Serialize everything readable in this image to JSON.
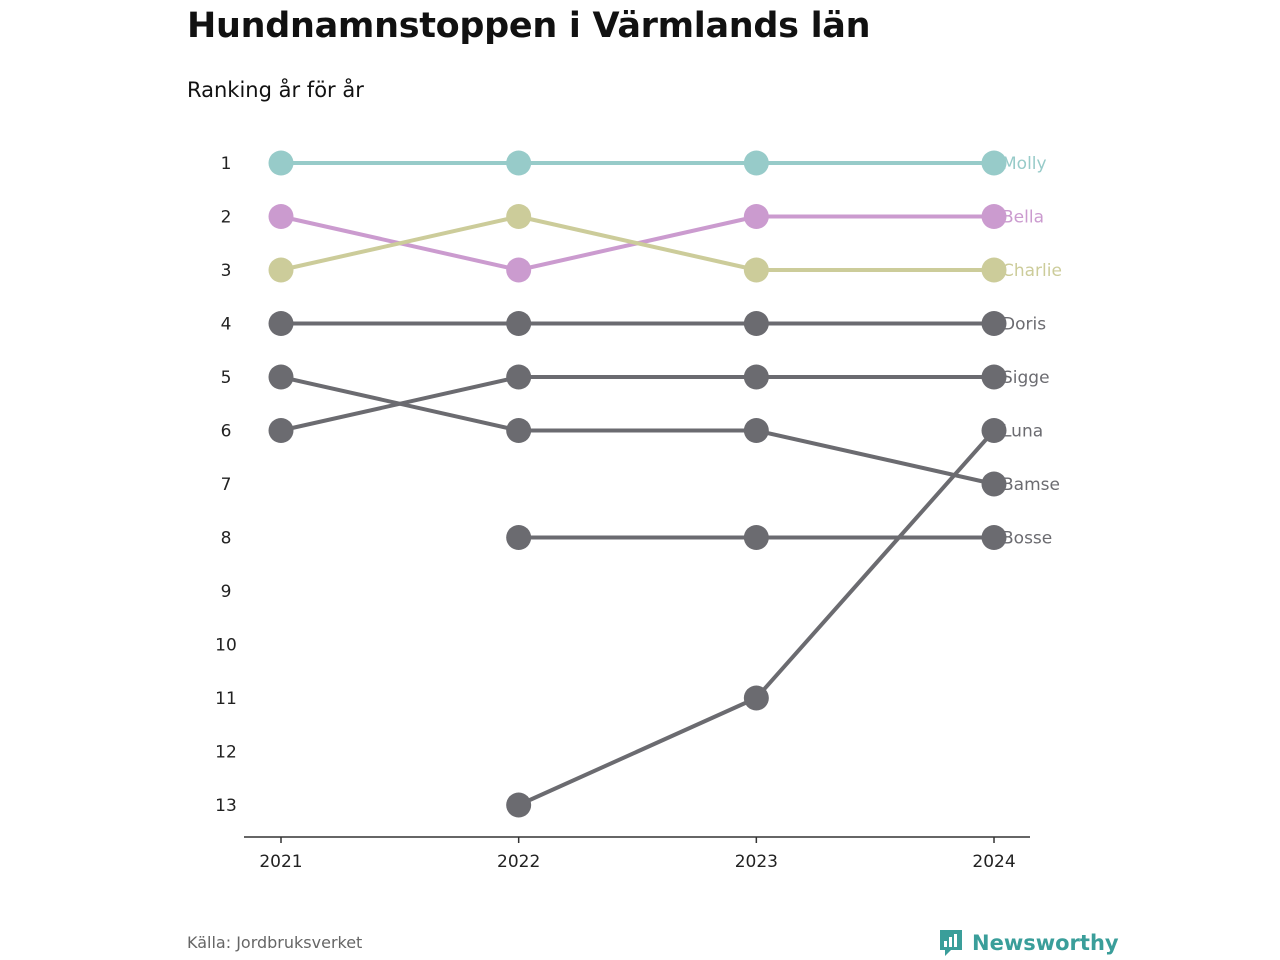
{
  "title": "Hundnamnstoppen i Värmlands län",
  "subtitle": "Ranking år för år",
  "source": "Källa: Jordbruksverket",
  "brand": "Newsworthy",
  "colors": {
    "highlight_1": "#97cbc9",
    "highlight_2": "#cb9bcf",
    "highlight_3": "#cccc9a",
    "default": "#6b6b70",
    "brand": "#3a9e9a"
  },
  "chart_data": {
    "type": "line",
    "x": [
      "2021",
      "2022",
      "2023",
      "2024"
    ],
    "ylim": [
      1,
      13
    ],
    "y_reversed": true,
    "y_ticks": [
      1,
      2,
      3,
      4,
      5,
      6,
      7,
      8,
      9,
      10,
      11,
      12,
      13
    ],
    "series": [
      {
        "name": "Molly",
        "color": "#97cbc9",
        "values": [
          1,
          1,
          1,
          1
        ]
      },
      {
        "name": "Bella",
        "color": "#cb9bcf",
        "values": [
          2,
          3,
          2,
          2
        ]
      },
      {
        "name": "Charlie",
        "color": "#cccc9a",
        "values": [
          3,
          2,
          3,
          3
        ]
      },
      {
        "name": "Doris",
        "color": "#6b6b70",
        "values": [
          4,
          4,
          4,
          4
        ]
      },
      {
        "name": "Sigge",
        "color": "#6b6b70",
        "values": [
          6,
          5,
          5,
          5
        ]
      },
      {
        "name": "Luna",
        "color": "#6b6b70",
        "values": [
          null,
          13,
          11,
          6
        ]
      },
      {
        "name": "Bamse",
        "color": "#6b6b70",
        "values": [
          5,
          6,
          6,
          7
        ]
      },
      {
        "name": "Bosse",
        "color": "#6b6b70",
        "values": [
          null,
          8,
          8,
          8
        ]
      }
    ]
  }
}
